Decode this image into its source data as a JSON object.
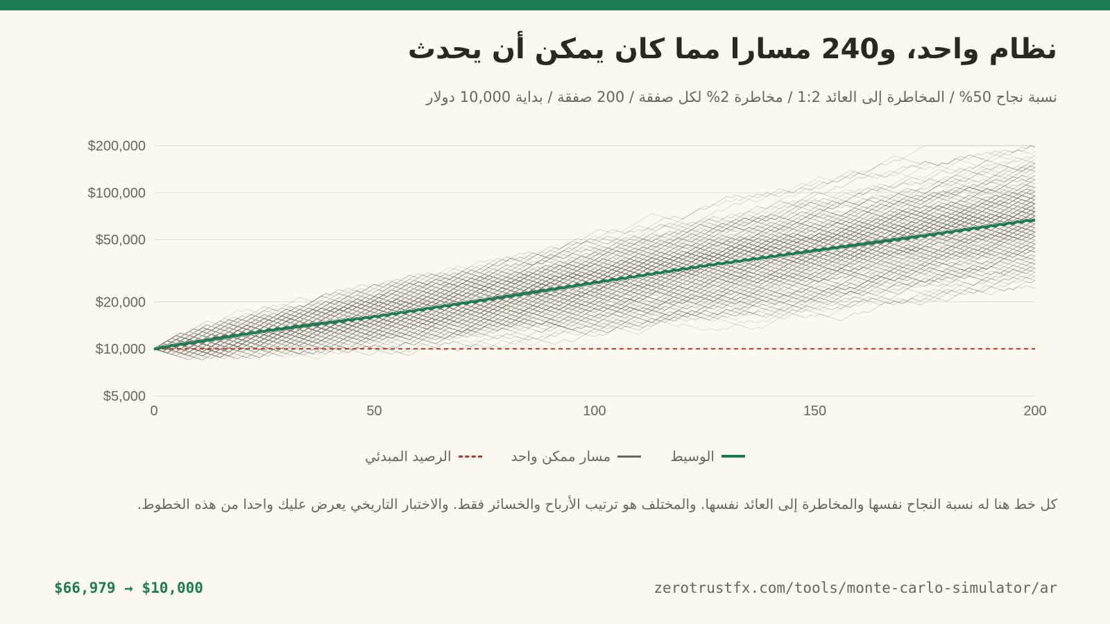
{
  "header": {
    "title": "نظام واحد، و240 مسارا مما كان يمكن أن يحدث",
    "subtitle": "نسبة نجاح 50% / المخاطرة إلى العائد 1:2 / مخاطرة 2% لكل صفقة / 200 صفقة / بداية 10,000 دولار"
  },
  "legend": {
    "median": "الوسيط",
    "path": "مسار ممكن واحد",
    "start": "الرصيد المبدئي"
  },
  "note": "كل خط هنا له نسبة النجاح نفسها والمخاطرة إلى العائد نفسها. والمختلف هو ترتيب الأرباح والخسائر فقط. والاختبار التاريخي يعرض عليك واحدا من هذه الخطوط.",
  "footer": {
    "range": "$66,979 → $10,000",
    "url": "zerotrustfx.com/tools/monte-carlo-simulator/ar"
  },
  "colors": {
    "accent": "#1e7b52",
    "paths": "#6a645a",
    "start_line": "#b03a2e",
    "grid": "#dedad0",
    "background": "#fbf8ef"
  },
  "chart_data": {
    "type": "line",
    "y_scale": "log",
    "xlim": [
      0,
      200
    ],
    "ylim": [
      5000,
      200000
    ],
    "x_ticks": [
      0,
      50,
      100,
      150,
      200
    ],
    "y_ticks": [
      {
        "value": 200000,
        "label": "$200,000"
      },
      {
        "value": 100000,
        "label": "$100,000"
      },
      {
        "value": 50000,
        "label": "$50,000"
      },
      {
        "value": 20000,
        "label": "$20,000"
      },
      {
        "value": 10000,
        "label": "$10,000"
      },
      {
        "value": 5000,
        "label": "$5,000"
      }
    ],
    "grid": true,
    "legend_position": "bottom",
    "path_count": 240,
    "trades": 200,
    "win_rate": 0.5,
    "risk_reward": 2,
    "risk_per_trade": 0.02,
    "starting_balance": 10000,
    "median": {
      "x": [
        0,
        25,
        50,
        75,
        100,
        125,
        150,
        175,
        200
      ],
      "y": [
        10000,
        13000,
        16000,
        20500,
        26500,
        34000,
        42500,
        53000,
        66979
      ]
    },
    "path_envelope": {
      "x": [
        0,
        25,
        50,
        75,
        100,
        125,
        150,
        175,
        200
      ],
      "low": [
        10000,
        7500,
        8000,
        9500,
        12000,
        15000,
        18500,
        22000,
        25000
      ],
      "high": [
        10000,
        21000,
        33000,
        48000,
        68000,
        95000,
        120000,
        155000,
        185000
      ]
    }
  }
}
